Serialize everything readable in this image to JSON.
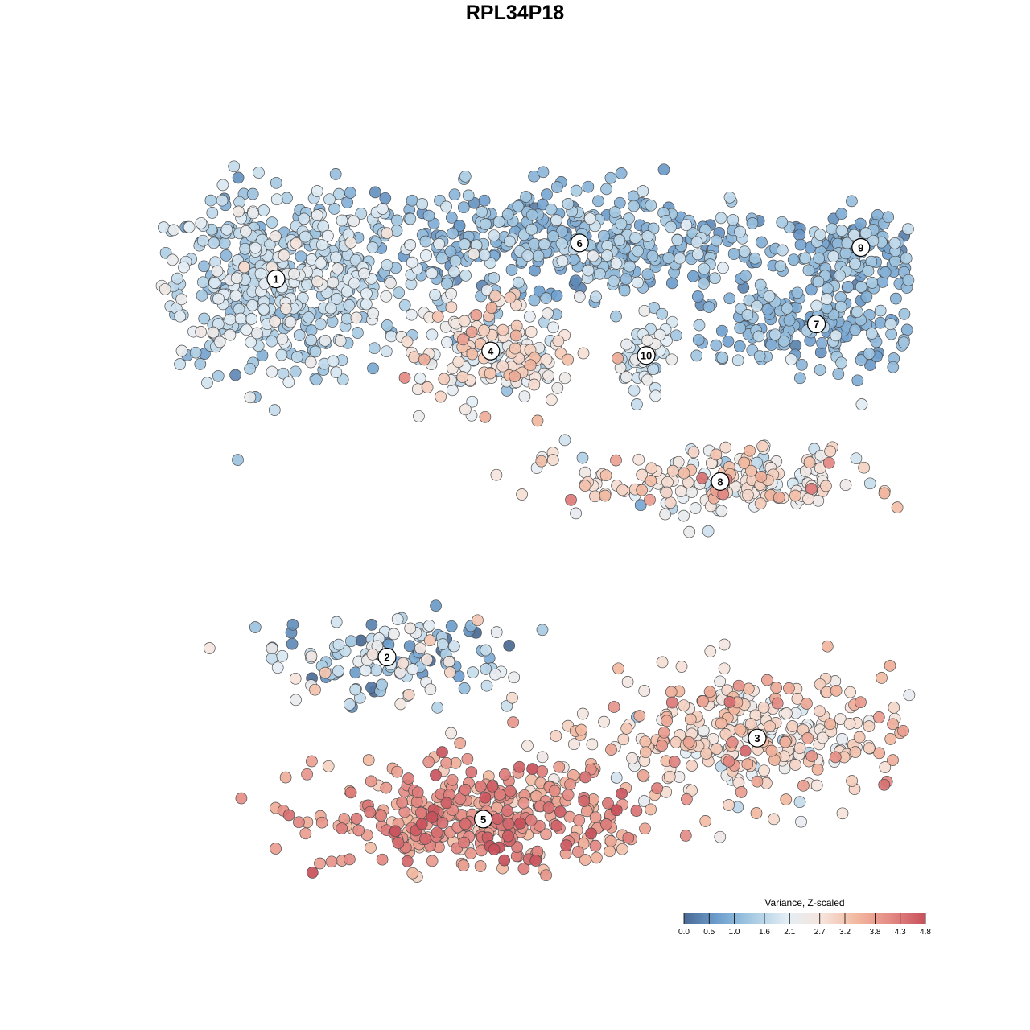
{
  "chart_data": {
    "type": "scatter",
    "title": "RPL34P18",
    "legend": {
      "title": "Variance, Z-scaled",
      "placement": "bottom-right",
      "ticks": [
        "0.0",
        "0.5",
        "1.0",
        "1.6",
        "2.1",
        "2.7",
        "3.2",
        "3.8",
        "4.3",
        "4.8"
      ],
      "range": [
        0.0,
        4.8
      ],
      "colors": [
        "#4a6a94",
        "#6fa0cf",
        "#a8cbe3",
        "#e4eef5",
        "#f6e4dc",
        "#f2b9a0",
        "#e48a84",
        "#c8505b"
      ]
    },
    "clusters": [
      {
        "label": "1",
        "x": 0.15,
        "y": 0.72,
        "value": 1.6,
        "color": "#b9d6ea"
      },
      {
        "label": "2",
        "x": 0.3,
        "y": -0.12,
        "value": 1.4,
        "color": "#9fc4e0"
      },
      {
        "label": "3",
        "x": 0.8,
        "y": -0.3,
        "value": 2.9,
        "color": "#f3d9cf"
      },
      {
        "label": "4",
        "x": 0.44,
        "y": 0.56,
        "value": 2.4,
        "color": "#f2dbd0"
      },
      {
        "label": "5",
        "x": 0.43,
        "y": -0.48,
        "value": 3.9,
        "color": "#dc7e7a"
      },
      {
        "label": "6",
        "x": 0.56,
        "y": 0.8,
        "value": 1.1,
        "color": "#8eb8da"
      },
      {
        "label": "7",
        "x": 0.88,
        "y": 0.62,
        "value": 1.0,
        "color": "#86b2d6"
      },
      {
        "label": "8",
        "x": 0.75,
        "y": 0.27,
        "value": 2.6,
        "color": "#eff0f2"
      },
      {
        "label": "9",
        "x": 0.94,
        "y": 0.79,
        "value": 1.0,
        "color": "#7fadd3"
      },
      {
        "label": "10",
        "x": 0.65,
        "y": 0.55,
        "value": 1.9,
        "color": "#cfe2ef"
      }
    ],
    "grid": false
  }
}
